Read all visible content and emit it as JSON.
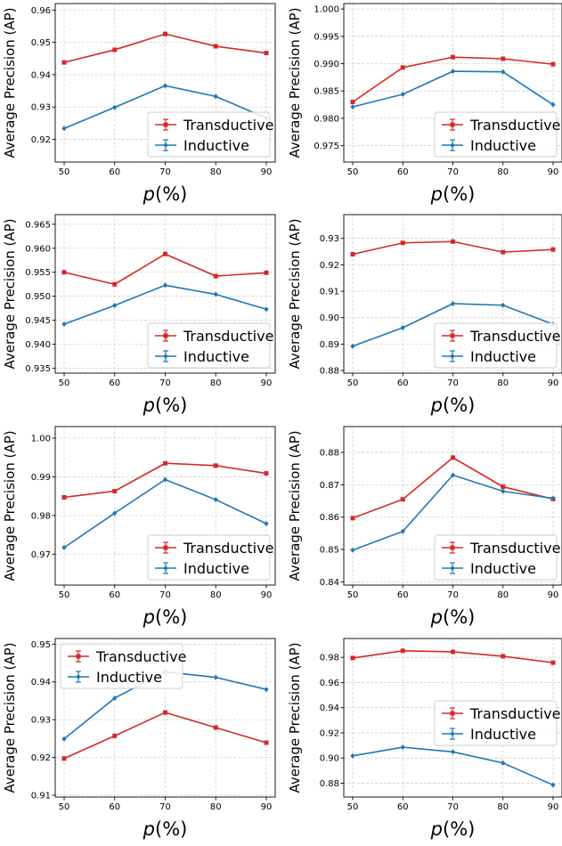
{
  "colors": {
    "transductive": "#d62728",
    "inductive": "#1f77b4",
    "grid": "#d0d0d0",
    "axis": "#000000"
  },
  "common": {
    "ylabel": "Average Precision (AP)",
    "xlabel_italic": "p",
    "xlabel_rest": "(%)",
    "legend": [
      "Transductive",
      "Inductive"
    ]
  },
  "chart_data": [
    {
      "type": "line",
      "x": [
        50,
        60,
        70,
        80,
        90
      ],
      "xticks": [
        "50",
        "60",
        "70",
        "80",
        "90"
      ],
      "ylim": [
        0.913,
        0.962
      ],
      "yticks": [
        0.92,
        0.93,
        0.94,
        0.95,
        0.96
      ],
      "ytick_labels": [
        "0.92",
        "0.93",
        "0.94",
        "0.95",
        "0.96"
      ],
      "series": [
        {
          "name": "Transductive",
          "values": [
            0.9438,
            0.9477,
            0.9526,
            0.9488,
            0.9467
          ]
        },
        {
          "name": "Inductive",
          "values": [
            0.9234,
            0.9299,
            0.9366,
            0.9333,
            0.9266
          ]
        }
      ],
      "grid": true,
      "legend_position": "lower-right"
    },
    {
      "type": "line",
      "x": [
        50,
        60,
        70,
        80,
        90
      ],
      "xticks": [
        "50",
        "60",
        "70",
        "80",
        "90"
      ],
      "ylim": [
        0.972,
        1.001
      ],
      "yticks": [
        0.975,
        0.98,
        0.985,
        0.99,
        0.995,
        1.0
      ],
      "ytick_labels": [
        "0.975",
        "0.980",
        "0.985",
        "0.990",
        "0.995",
        "1.000"
      ],
      "series": [
        {
          "name": "Transductive",
          "values": [
            0.983,
            0.9893,
            0.9912,
            0.9909,
            0.9899
          ]
        },
        {
          "name": "Inductive",
          "values": [
            0.9821,
            0.9844,
            0.9886,
            0.9885,
            0.9825
          ]
        }
      ],
      "grid": true,
      "legend_position": "lower-right"
    },
    {
      "type": "line",
      "x": [
        50,
        60,
        70,
        80,
        90
      ],
      "xticks": [
        "50",
        "60",
        "70",
        "80",
        "90"
      ],
      "ylim": [
        0.934,
        0.967
      ],
      "yticks": [
        0.935,
        0.94,
        0.945,
        0.95,
        0.955,
        0.96,
        0.965
      ],
      "ytick_labels": [
        "0.935",
        "0.940",
        "0.945",
        "0.950",
        "0.955",
        "0.960",
        "0.965"
      ],
      "series": [
        {
          "name": "Transductive",
          "values": [
            0.955,
            0.9525,
            0.9588,
            0.9542,
            0.9549
          ]
        },
        {
          "name": "Inductive",
          "values": [
            0.9442,
            0.9481,
            0.9523,
            0.9504,
            0.9473
          ]
        }
      ],
      "grid": true,
      "legend_position": "lower-right"
    },
    {
      "type": "line",
      "x": [
        50,
        60,
        70,
        80,
        90
      ],
      "xticks": [
        "50",
        "60",
        "70",
        "80",
        "90"
      ],
      "ylim": [
        0.879,
        0.939
      ],
      "yticks": [
        0.88,
        0.89,
        0.9,
        0.91,
        0.92,
        0.93
      ],
      "ytick_labels": [
        "0.88",
        "0.89",
        "0.90",
        "0.91",
        "0.92",
        "0.93"
      ],
      "series": [
        {
          "name": "Transductive",
          "values": [
            0.924,
            0.9283,
            0.9288,
            0.9248,
            0.9258
          ]
        },
        {
          "name": "Inductive",
          "values": [
            0.8892,
            0.8962,
            0.9053,
            0.9047,
            0.8975
          ]
        }
      ],
      "grid": true,
      "legend_position": "lower-right"
    },
    {
      "type": "line",
      "x": [
        50,
        60,
        70,
        80,
        90
      ],
      "xticks": [
        "50",
        "60",
        "70",
        "80",
        "90"
      ],
      "ylim": [
        0.962,
        1.003
      ],
      "yticks": [
        0.97,
        0.98,
        0.99,
        1.0
      ],
      "ytick_labels": [
        "0.97",
        "0.98",
        "0.99",
        "1.00"
      ],
      "series": [
        {
          "name": "Transductive",
          "values": [
            0.9847,
            0.9863,
            0.9935,
            0.9929,
            0.9909
          ]
        },
        {
          "name": "Inductive",
          "values": [
            0.9717,
            0.9806,
            0.9893,
            0.9841,
            0.9779
          ]
        }
      ],
      "grid": true,
      "legend_position": "lower-right"
    },
    {
      "type": "line",
      "x": [
        50,
        60,
        70,
        80,
        90
      ],
      "xticks": [
        "50",
        "60",
        "70",
        "80",
        "90"
      ],
      "ylim": [
        0.839,
        0.888
      ],
      "yticks": [
        0.84,
        0.85,
        0.86,
        0.87,
        0.88
      ],
      "ytick_labels": [
        "0.84",
        "0.85",
        "0.86",
        "0.87",
        "0.88"
      ],
      "series": [
        {
          "name": "Transductive",
          "values": [
            0.8597,
            0.8655,
            0.8784,
            0.8694,
            0.8656
          ]
        },
        {
          "name": "Inductive",
          "values": [
            0.8498,
            0.8556,
            0.873,
            0.868,
            0.8658
          ]
        }
      ],
      "grid": true,
      "legend_position": "lower-right"
    },
    {
      "type": "line",
      "x": [
        50,
        60,
        70,
        80,
        90
      ],
      "xticks": [
        "50",
        "60",
        "70",
        "80",
        "90"
      ],
      "ylim": [
        0.9095,
        0.9515
      ],
      "yticks": [
        0.91,
        0.92,
        0.93,
        0.94,
        0.95
      ],
      "ytick_labels": [
        "0.91",
        "0.92",
        "0.93",
        "0.94",
        "0.95"
      ],
      "series": [
        {
          "name": "Transductive",
          "values": [
            0.9197,
            0.9257,
            0.9319,
            0.9279,
            0.9239
          ]
        },
        {
          "name": "Inductive",
          "values": [
            0.9249,
            0.9357,
            0.9427,
            0.9412,
            0.938
          ]
        }
      ],
      "grid": true,
      "legend_position": "upper-left"
    },
    {
      "type": "line",
      "x": [
        50,
        60,
        70,
        80,
        90
      ],
      "xticks": [
        "50",
        "60",
        "70",
        "80",
        "90"
      ],
      "ylim": [
        0.869,
        0.995
      ],
      "yticks": [
        0.88,
        0.9,
        0.92,
        0.94,
        0.96,
        0.98
      ],
      "ytick_labels": [
        "0.88",
        "0.90",
        "0.92",
        "0.94",
        "0.96",
        "0.98"
      ],
      "series": [
        {
          "name": "Transductive",
          "values": [
            0.9795,
            0.9852,
            0.9844,
            0.9809,
            0.9758
          ]
        },
        {
          "name": "Inductive",
          "values": [
            0.9017,
            0.9086,
            0.9049,
            0.8961,
            0.8786
          ]
        }
      ],
      "grid": true,
      "legend_position": "center-right"
    }
  ]
}
